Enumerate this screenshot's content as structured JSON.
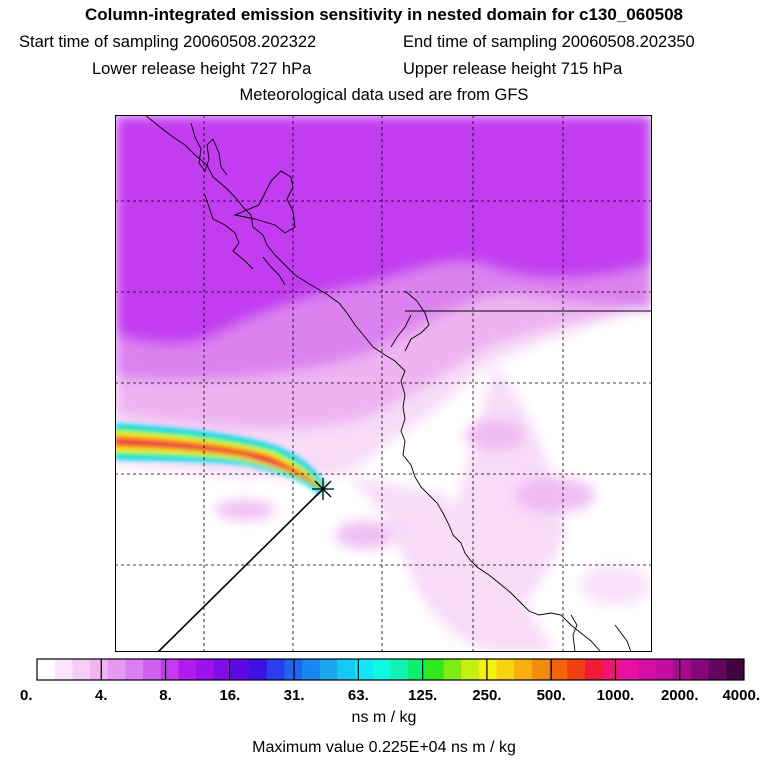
{
  "header": {
    "title": "Column-integrated emission sensitivity in nested domain for c130_060508",
    "start_label": "Start time of sampling",
    "start_value": "20060508.202322",
    "end_label": "End time of sampling",
    "end_value": "20060508.202350",
    "lower_label": "Lower release height",
    "lower_value": "727 hPa",
    "upper_label": "Upper release height",
    "upper_value": "715 hPa",
    "met_note": "Meteorological data used are from GFS"
  },
  "colorbar": {
    "tick_labels": [
      "0.",
      "4.",
      "8.",
      "16.",
      "31.",
      "63.",
      "125.",
      "250.",
      "500.",
      "1000.",
      "2000.",
      "4000."
    ],
    "unit": "ns m / kg",
    "colors": [
      "#ffffff",
      "#fbe6fb",
      "#f6cdf6",
      "#f1b3f1",
      "#e699f0",
      "#dc7ff0",
      "#cf61ee",
      "#c03ced",
      "#b21aed",
      "#9d12ec",
      "#7f0ce9",
      "#5f08e6",
      "#3f10e6",
      "#2a3cec",
      "#2063ee",
      "#1c86f0",
      "#1aa8f2",
      "#16c9f5",
      "#14e6f7",
      "#10f7e6",
      "#10f2b4",
      "#10ec6c",
      "#30e81e",
      "#7cec14",
      "#c5f012",
      "#f3f212",
      "#f9d210",
      "#f7b00e",
      "#f38b0c",
      "#f16508",
      "#f04010",
      "#f01c36",
      "#f11470",
      "#e810a0",
      "#d60ea4",
      "#c30ca0",
      "#a60a8e",
      "#85087a",
      "#640660",
      "#420440"
    ]
  },
  "max_value": {
    "label": "Maximum value",
    "value": "0.225E+04",
    "unit": "ns m / kg"
  },
  "map": {
    "colors": {
      "purple_dark": "#c23cf0",
      "purple_mid": "#dc82f0",
      "purple_light": "#eeb4f2",
      "pink_pale": "#f8dcf8",
      "white": "#ffffff"
    },
    "plume_colors": [
      "#14d8f6",
      "#10ee8a",
      "#f2f212",
      "#f7a80e",
      "#f04010",
      "#f01c5c"
    ]
  }
}
